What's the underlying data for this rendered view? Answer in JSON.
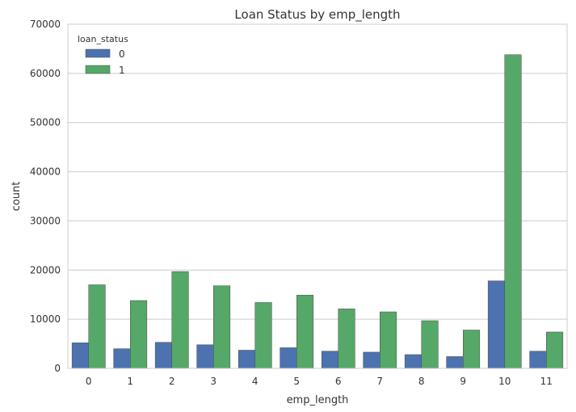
{
  "chart_data": {
    "type": "bar",
    "title": "Loan Status by emp_length",
    "xlabel": "emp_length",
    "ylabel": "count",
    "categories": [
      "0",
      "1",
      "2",
      "3",
      "4",
      "5",
      "6",
      "7",
      "8",
      "9",
      "10",
      "11"
    ],
    "ylim": [
      0,
      70000
    ],
    "yticks": [
      0,
      10000,
      20000,
      30000,
      40000,
      50000,
      60000,
      70000
    ],
    "grid": true,
    "legend": {
      "title": "loan_status",
      "placement": "top-left"
    },
    "series": [
      {
        "name": "0",
        "color": "#4c72b0",
        "values": [
          5200,
          4000,
          5300,
          4800,
          3700,
          4200,
          3500,
          3300,
          2800,
          2400,
          17800,
          3500
        ]
      },
      {
        "name": "1",
        "color": "#55a868",
        "values": [
          17000,
          13800,
          19700,
          16800,
          13400,
          14900,
          12100,
          11500,
          9700,
          7800,
          63800,
          7400
        ]
      }
    ]
  }
}
